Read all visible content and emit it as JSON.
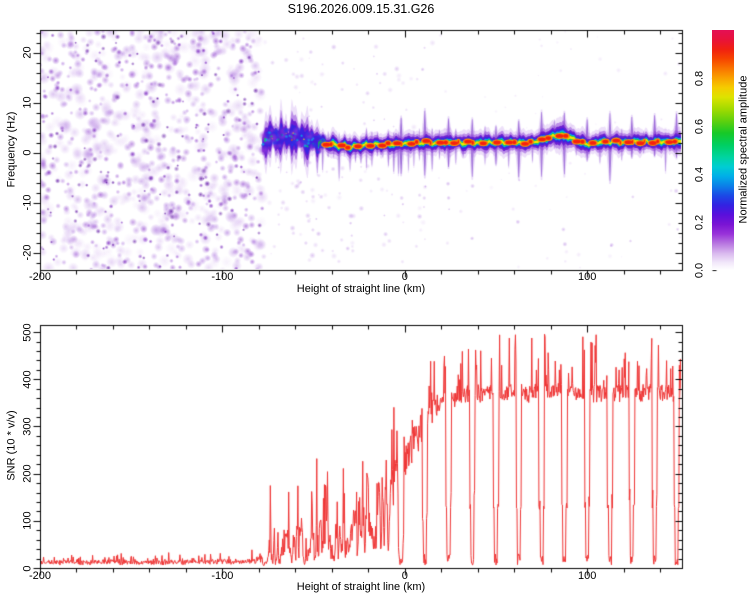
{
  "title": "S196.2026.009.15.31.G26",
  "axes": {
    "xlabel": "Height of straight line (km)",
    "freq_ylabel": "Frequency (Hz)",
    "snr_ylabel": "SNR (10 * v/v)"
  },
  "colorbar": {
    "label": "Normalized spectral amplitude",
    "ticks": [
      0,
      0.2,
      0.4,
      0.6,
      0.8
    ],
    "tick_labels": [
      "0.0",
      "0.2",
      "0.4",
      "0.6",
      "0.8"
    ],
    "max": 1.0,
    "stops": [
      [
        "0%",
        "#ffffff"
      ],
      [
        "3%",
        "#f2e8fa"
      ],
      [
        "7%",
        "#d9b8ee"
      ],
      [
        "11%",
        "#b877e0"
      ],
      [
        "15%",
        "#9933d9"
      ],
      [
        "19%",
        "#7a14d4"
      ],
      [
        "23%",
        "#5a10dc"
      ],
      [
        "27%",
        "#3322e2"
      ],
      [
        "31%",
        "#1b49e6"
      ],
      [
        "35%",
        "#0b7fe8"
      ],
      [
        "39%",
        "#00aee8"
      ],
      [
        "43%",
        "#00cdd2"
      ],
      [
        "47%",
        "#00d4a0"
      ],
      [
        "52%",
        "#00cf62"
      ],
      [
        "57%",
        "#16c928"
      ],
      [
        "62%",
        "#5ed00e"
      ],
      [
        "67%",
        "#a1da00"
      ],
      [
        "72%",
        "#dde300"
      ],
      [
        "76%",
        "#f5cc00"
      ],
      [
        "80%",
        "#f9a100"
      ],
      [
        "84%",
        "#f97300"
      ],
      [
        "88%",
        "#f64400"
      ],
      [
        "92%",
        "#f02011"
      ],
      [
        "96%",
        "#e8123a"
      ],
      [
        "100%",
        "#e40f55"
      ]
    ]
  },
  "chart_data": [
    {
      "id": "spectrogram",
      "type": "heatmap",
      "title": "S196.2026.009.15.31.G26",
      "xlabel": "Height of straight line (km)",
      "ylabel": "Frequency (Hz)",
      "xlim": [
        -200,
        152
      ],
      "ylim": [
        -23.5,
        24.5
      ],
      "xticks": [
        -200,
        -100,
        0,
        100
      ],
      "xtick_labels": [
        "-200",
        "-100",
        "0",
        "100"
      ],
      "xminor_step": 20,
      "yticks": [
        -20,
        -10,
        0,
        10,
        20
      ],
      "ytick_labels": [
        "-20",
        "-10",
        "0",
        "10",
        "20"
      ],
      "yminor_step": 2,
      "noise_region": {
        "x_start": -200,
        "x_end": -78
      },
      "chaotic_region": [
        -78,
        -48
      ],
      "bump_region": [
        76,
        96
      ],
      "red_dash_region": [
        -45,
        152
      ],
      "band_track": [
        [
          -78,
          1.6
        ],
        [
          -75,
          2.8
        ],
        [
          -72,
          3.4
        ],
        [
          -69,
          2.4
        ],
        [
          -66,
          3.6
        ],
        [
          -63,
          2.6
        ],
        [
          -60,
          3.4
        ],
        [
          -57,
          3.3
        ],
        [
          -54,
          2.2
        ],
        [
          -51,
          2.6
        ],
        [
          -48,
          1.8
        ],
        [
          -45,
          2.2
        ],
        [
          -42,
          1.5
        ],
        [
          -39,
          1.8
        ],
        [
          -36,
          1.1
        ],
        [
          -33,
          1.6
        ],
        [
          -30,
          0.9
        ],
        [
          -27,
          1.4
        ],
        [
          -24,
          1.1
        ],
        [
          -21,
          1.7
        ],
        [
          -18,
          1.3
        ],
        [
          -15,
          1.8
        ],
        [
          -12,
          1.4
        ],
        [
          -9,
          1.8
        ],
        [
          -6,
          1.5
        ],
        [
          -3,
          1.9
        ],
        [
          0,
          1.7
        ],
        [
          4,
          2.0
        ],
        [
          8,
          1.8
        ],
        [
          12,
          2.1
        ],
        [
          16,
          1.8
        ],
        [
          20,
          2.1
        ],
        [
          24,
          1.9
        ],
        [
          28,
          2.1
        ],
        [
          32,
          1.8
        ],
        [
          36,
          2.0
        ],
        [
          40,
          1.9
        ],
        [
          44,
          2.1
        ],
        [
          48,
          1.9
        ],
        [
          52,
          2.1
        ],
        [
          56,
          1.9
        ],
        [
          60,
          2.1
        ],
        [
          64,
          1.9
        ],
        [
          68,
          2.0
        ],
        [
          72,
          2.2
        ],
        [
          76,
          2.6
        ],
        [
          80,
          3.1
        ],
        [
          84,
          3.5
        ],
        [
          88,
          3.3
        ],
        [
          92,
          2.8
        ],
        [
          96,
          2.1
        ],
        [
          100,
          1.6
        ],
        [
          104,
          1.9
        ],
        [
          108,
          2.2
        ],
        [
          112,
          2.0
        ],
        [
          116,
          2.2
        ],
        [
          120,
          2.0
        ],
        [
          124,
          2.2
        ],
        [
          128,
          2.1
        ],
        [
          132,
          2.2
        ],
        [
          136,
          2.1
        ],
        [
          140,
          2.2
        ],
        [
          144,
          2.1
        ],
        [
          148,
          2.2
        ],
        [
          152,
          2.2
        ]
      ],
      "band_layers": [
        {
          "hw": 2.7,
          "color": "#ac74e2",
          "alpha": 0.22,
          "start": -78
        },
        {
          "hw": 1.9,
          "color": "#8b3ed8",
          "alpha": 0.5,
          "start": -78
        },
        {
          "hw": 1.35,
          "color": "#6d1fd2",
          "alpha": 1.0,
          "start": -78
        },
        {
          "hw": 0.95,
          "color": "#3a23e0",
          "alpha": 1.0,
          "start": -78
        },
        {
          "hw": 0.63,
          "color": "#00aeea",
          "alpha": 1.0,
          "start": -52
        },
        {
          "hw": 0.41,
          "color": "#0ccf49",
          "alpha": 1.0,
          "start": -52
        },
        {
          "hw": 0.25,
          "color": "#f4e800",
          "alpha": 1.0,
          "start": -46
        }
      ],
      "dash_colors": {
        "orange": "#ff9100",
        "red": "#f5200e"
      },
      "streak_color": "#6e28c4",
      "streak_halo": "#b280e6",
      "noise_colors": [
        "#ead9f7",
        "#d4b4ef",
        "#b787e2",
        "#9a55d2",
        "#7c2cc0",
        "#641ba6"
      ],
      "streaks_km": [
        -74,
        -70,
        -66,
        -62,
        -58,
        -55,
        -51.5,
        -48,
        -45,
        -42,
        -39,
        -36,
        -33,
        -30,
        -27,
        -24,
        -21,
        -18,
        -15,
        -12,
        -9,
        -6,
        -3.5,
        2,
        5,
        8,
        15,
        19,
        28,
        32,
        44,
        57,
        70,
        82,
        94,
        107,
        119,
        131,
        143
      ],
      "periodic_streaks_km": [
        -2,
        11,
        24,
        37,
        50,
        62.5,
        75,
        87.5,
        100,
        112.5,
        124.5,
        137,
        149
      ]
    },
    {
      "id": "snr",
      "type": "line",
      "xlabel": "Height of straight line (km)",
      "ylabel": "SNR (10 * v/v)",
      "color": "#ee3333",
      "xlim": [
        -200,
        152
      ],
      "ylim": [
        0,
        515
      ],
      "xticks": [
        -200,
        -100,
        0,
        100
      ],
      "xtick_labels": [
        "-200",
        "-100",
        "0",
        "100"
      ],
      "xminor_step": 20,
      "yticks": [
        0,
        100,
        200,
        300,
        400,
        500
      ],
      "ytick_labels": [
        "0",
        "100",
        "200",
        "300",
        "400",
        "500"
      ],
      "yminor_step": 20,
      "envelope": [
        [
          -200,
          12,
          8,
          15
        ],
        [
          -170,
          12,
          8,
          15
        ],
        [
          -140,
          12,
          8,
          18
        ],
        [
          -110,
          12,
          9,
          18
        ],
        [
          -90,
          13,
          9,
          22
        ],
        [
          -82,
          15,
          11,
          35
        ],
        [
          -78,
          28,
          22,
          60
        ],
        [
          -74,
          45,
          38,
          85
        ],
        [
          -70,
          40,
          36,
          110
        ],
        [
          -66,
          55,
          48,
          130
        ],
        [
          -62,
          50,
          46,
          160
        ],
        [
          -58,
          75,
          60,
          140
        ],
        [
          -54,
          65,
          55,
          150
        ],
        [
          -50,
          55,
          50,
          140
        ],
        [
          -46,
          85,
          65,
          140
        ],
        [
          -42,
          75,
          58,
          160
        ],
        [
          -38,
          65,
          52,
          130
        ],
        [
          -34,
          85,
          66,
          150
        ],
        [
          -30,
          95,
          75,
          170
        ],
        [
          -27,
          105,
          80,
          215
        ],
        [
          -25,
          115,
          85,
          245
        ],
        [
          -22,
          125,
          82,
          170
        ],
        [
          -19,
          140,
          85,
          150
        ],
        [
          -16,
          155,
          90,
          185
        ],
        [
          -13,
          165,
          88,
          170
        ],
        [
          -10,
          160,
          82,
          140
        ],
        [
          -7,
          165,
          85,
          130
        ],
        [
          -4,
          175,
          85,
          130
        ],
        [
          -1,
          195,
          70,
          110
        ],
        [
          2,
          245,
          70,
          120
        ],
        [
          5,
          270,
          70,
          130
        ],
        [
          8,
          295,
          68,
          160
        ],
        [
          11,
          315,
          60,
          140
        ],
        [
          14,
          335,
          50,
          130
        ],
        [
          18,
          350,
          38,
          125
        ],
        [
          25,
          362,
          33,
          120
        ],
        [
          35,
          370,
          30,
          118
        ],
        [
          50,
          368,
          30,
          122
        ],
        [
          65,
          372,
          30,
          118
        ],
        [
          80,
          374,
          30,
          115
        ],
        [
          95,
          370,
          30,
          120
        ],
        [
          110,
          371,
          30,
          120
        ],
        [
          125,
          372,
          30,
          118
        ],
        [
          140,
          370,
          30,
          120
        ],
        [
          152,
          373,
          30,
          112
        ]
      ],
      "dropouts_km": [
        -2,
        11,
        24,
        37,
        50,
        62.5,
        75,
        87.5,
        100,
        112.5,
        124.5,
        137,
        149
      ],
      "dropout_halfwidth_km": 0.85,
      "dropout_floor": [
        6,
        30
      ]
    }
  ]
}
